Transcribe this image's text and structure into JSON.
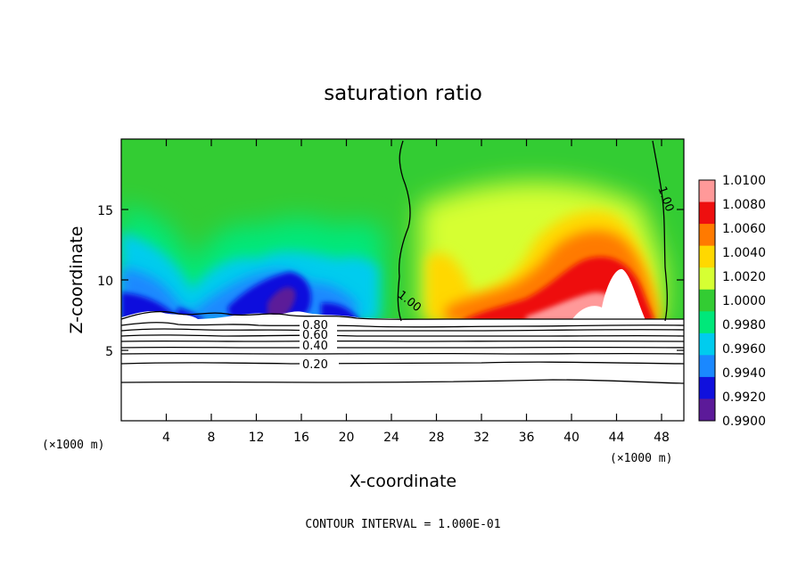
{
  "chart_data": {
    "type": "heatmap",
    "title": "saturation ratio",
    "xlabel": "X-coordinate",
    "ylabel": "Z-coordinate",
    "x_unit_left": "(×1000 m)",
    "x_unit_right": "(×1000 m)",
    "xlim": [
      0,
      50
    ],
    "ylim": [
      0,
      20
    ],
    "x_ticks": [
      "4",
      "8",
      "12",
      "16",
      "20",
      "24",
      "28",
      "32",
      "36",
      "40",
      "44",
      "48"
    ],
    "y_ticks": [
      "5",
      "10",
      "15"
    ],
    "colorbar": {
      "levels": [
        "1.0100",
        "1.0080",
        "1.0060",
        "1.0040",
        "1.0020",
        "1.0000",
        "0.9980",
        "0.9960",
        "0.9940",
        "0.9920",
        "0.9900"
      ],
      "colors": [
        "#ff9999",
        "#ee0f0f",
        "#ff7a00",
        "#ffd800",
        "#d6ff33",
        "#33cc33",
        "#00e87a",
        "#00ccee",
        "#1a88ff",
        "#1010dd",
        "#5c1a99"
      ]
    },
    "contour_labels": [
      {
        "text": "1.00",
        "x": 24.8,
        "y": 8.5
      },
      {
        "text": "1.00",
        "x": 46.3,
        "y": 15.7
      },
      {
        "text": "0.80",
        "x": 16.5,
        "y": 6.9
      },
      {
        "text": "0.60",
        "x": 16.5,
        "y": 6.2
      },
      {
        "text": "0.40",
        "x": 16.5,
        "y": 5.4
      },
      {
        "text": "0.20",
        "x": 16.5,
        "y": 4.1
      }
    ],
    "contour_interval_text": "CONTOUR INTERVAL = 1.000E-01"
  }
}
